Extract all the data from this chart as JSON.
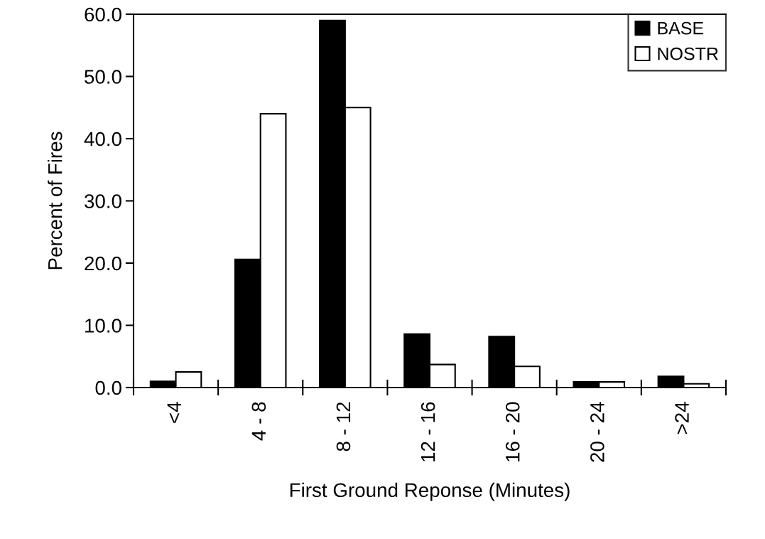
{
  "chart_data": {
    "type": "bar",
    "xlabel": "First Ground Reponse (Minutes)",
    "ylabel": "Percent of Fires",
    "categories": [
      "<4",
      "4 - 8",
      "8 - 12",
      "12 - 16",
      "16 - 20",
      "20 - 24",
      ">24"
    ],
    "series": [
      {
        "name": "BASE",
        "color": "#000000",
        "values": [
          1.0,
          20.6,
          59.0,
          8.6,
          8.2,
          0.9,
          1.8
        ]
      },
      {
        "name": "NOSTR",
        "color": "#ffffff",
        "values": [
          2.5,
          44.0,
          45.0,
          3.7,
          3.4,
          0.9,
          0.6
        ]
      }
    ],
    "ylim": [
      0,
      60
    ],
    "yticks": [
      {
        "value": 0,
        "label": "0.0"
      },
      {
        "value": 10,
        "label": "10.0"
      },
      {
        "value": 20,
        "label": "20.0"
      },
      {
        "value": 30,
        "label": "30.0"
      },
      {
        "value": 40,
        "label": "40.0"
      },
      {
        "value": 50,
        "label": "50.0"
      },
      {
        "value": 60,
        "label": "60.0"
      }
    ],
    "legend": "top right",
    "grid": false
  }
}
